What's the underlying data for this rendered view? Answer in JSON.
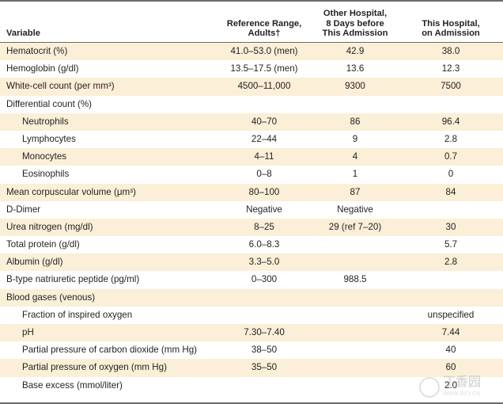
{
  "table": {
    "headers": {
      "variable": "Variable",
      "reference_line1": "Reference Range,",
      "reference_line2": "Adults†",
      "other_line1": "Other Hospital,",
      "other_line2": "8 Days before",
      "other_line3": "This Admission",
      "this_line1": "This Hospital,",
      "this_line2": "on Admission"
    },
    "rows": [
      {
        "variable": "Hematocrit (%)",
        "reference": "41.0–53.0 (men)",
        "other": "42.9",
        "this": "38.0",
        "indent": false,
        "shaded": true
      },
      {
        "variable": "Hemoglobin (g/dl)",
        "reference": "13.5–17.5 (men)",
        "other": "13.6",
        "this": "12.3",
        "indent": false,
        "shaded": false
      },
      {
        "variable": "White-cell count (per mm³)",
        "reference": "4500–11,000",
        "other": "9300",
        "this": "7500",
        "indent": false,
        "shaded": true
      },
      {
        "variable": "Differential count (%)",
        "reference": "",
        "other": "",
        "this": "",
        "indent": false,
        "shaded": false
      },
      {
        "variable": "Neutrophils",
        "reference": "40–70",
        "other": "86",
        "this": "96.4",
        "indent": true,
        "shaded": true
      },
      {
        "variable": "Lymphocytes",
        "reference": "22–44",
        "other": "9",
        "this": "2.8",
        "indent": true,
        "shaded": false
      },
      {
        "variable": "Monocytes",
        "reference": "4–11",
        "other": "4",
        "this": "0.7",
        "indent": true,
        "shaded": true
      },
      {
        "variable": "Eosinophils",
        "reference": "0–8",
        "other": "1",
        "this": "0",
        "indent": true,
        "shaded": false
      },
      {
        "variable": "Mean corpuscular volume (μm³)",
        "reference": "80–100",
        "other": "87",
        "this": "84",
        "indent": false,
        "shaded": true
      },
      {
        "variable": "D-Dimer",
        "reference": "Negative",
        "other": "Negative",
        "this": "",
        "indent": false,
        "shaded": false
      },
      {
        "variable": "Urea nitrogen (mg/dl)",
        "reference": "8–25",
        "other": "29 (ref 7–20)",
        "this": "30",
        "indent": false,
        "shaded": true
      },
      {
        "variable": "Total protein (g/dl)",
        "reference": "6.0–8.3",
        "other": "",
        "this": "5.7",
        "indent": false,
        "shaded": false
      },
      {
        "variable": "Albumin (g/dl)",
        "reference": "3.3–5.0",
        "other": "",
        "this": "2.8",
        "indent": false,
        "shaded": true
      },
      {
        "variable": "B-type natriuretic peptide (pg/ml)",
        "reference": "0–300",
        "other": "988.5",
        "this": "",
        "indent": false,
        "shaded": false
      },
      {
        "variable": "Blood gases (venous)",
        "reference": "",
        "other": "",
        "this": "",
        "indent": false,
        "shaded": true
      },
      {
        "variable": "Fraction of inspired oxygen",
        "reference": "",
        "other": "",
        "this": "unspecified",
        "indent": true,
        "shaded": false
      },
      {
        "variable": "pH",
        "reference": "7.30–7.40",
        "other": "",
        "this": "7.44",
        "indent": true,
        "shaded": true
      },
      {
        "variable": "Partial pressure of carbon dioxide (mm Hg)",
        "reference": "38–50",
        "other": "",
        "this": "40",
        "indent": true,
        "shaded": false
      },
      {
        "variable": "Partial pressure of oxygen (mm Hg)",
        "reference": "35–50",
        "other": "",
        "this": "60",
        "indent": true,
        "shaded": true
      },
      {
        "variable": "Base excess (mmol/liter)",
        "reference": "",
        "other": "",
        "this": "2.0",
        "indent": true,
        "shaded": false
      }
    ]
  },
  "watermark": {
    "text": "丁香园",
    "url": "WWW.DXY.CN"
  },
  "colors": {
    "shade": "#fbefd8",
    "rule": "#6b6b6b",
    "text": "#231f20"
  }
}
